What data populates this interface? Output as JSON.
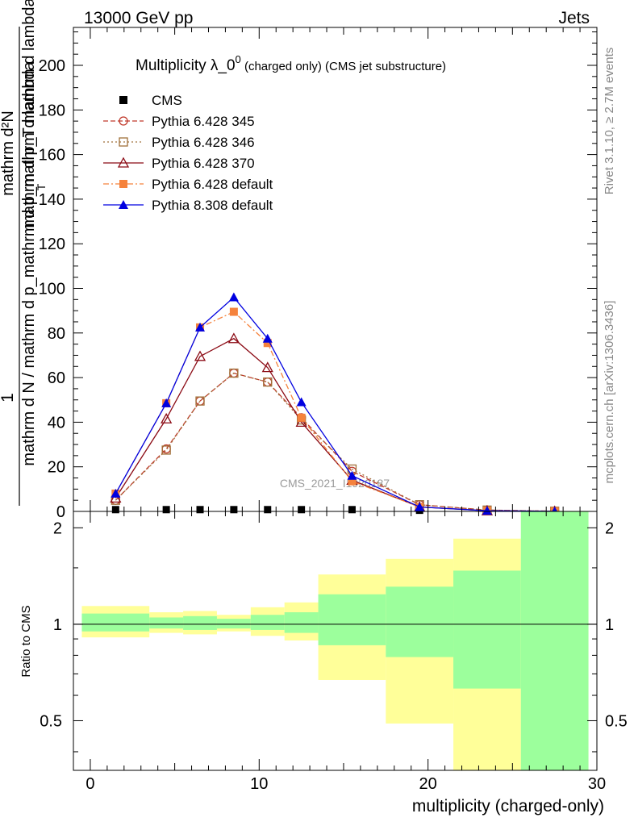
{
  "header": {
    "left": "13000 GeV pp",
    "right": "Jets"
  },
  "side_labels": {
    "rivet": "Rivet 3.1.10, ≥ 2.7M events",
    "mcplots": "mcplots.cern.ch [arXiv:1306.3436]"
  },
  "chart_data": {
    "type": "line",
    "title_main": "Multiplicity λ_0",
    "title_sup": "0",
    "title_small": " (charged only) (CMS jet substructure)",
    "watermark": "CMS_2021_I1920187",
    "xlabel": "multiplicity (charged-only)",
    "ylabel_top": {
      "numerator": "1",
      "denominator": "mathrm d N / mathrm d p_mathrm d p_mathrm d lambda",
      "overlay": "mathrm d²N",
      "overlay_fraction": "mathrm d p_T mathrm d lambda",
      "subscript": "T"
    },
    "ylabel_ratio": "Ratio to CMS",
    "xlim": [
      -1,
      30
    ],
    "ylim": [
      0,
      217
    ],
    "ylim_ratio": [
      0.35,
      2.25
    ],
    "x_ticks": [
      "0",
      "10",
      "20",
      "30"
    ],
    "y_ticks": [
      "0",
      "20",
      "40",
      "60",
      "80",
      "100",
      "120",
      "140",
      "160",
      "180",
      "200"
    ],
    "ratio_ticks": [
      "0.5",
      "1",
      "2"
    ],
    "x": [
      1.5,
      4.5,
      6.5,
      8.5,
      10.5,
      12.5,
      15.5,
      19.5,
      23.5,
      27.5
    ],
    "series": [
      {
        "name": "CMS",
        "color": "#000000",
        "marker": "square-filled",
        "values": [
          0.8,
          0.8,
          0.8,
          0.8,
          0.8,
          0.8,
          0.8,
          0.5,
          0.3,
          0.2
        ]
      },
      {
        "name": "Pythia 6.428 345",
        "color": "#c0392b",
        "marker": "circle-open",
        "dash": "6,3",
        "values": [
          5,
          28,
          49.5,
          62,
          58,
          42,
          18,
          3,
          0.6,
          0.1
        ]
      },
      {
        "name": "Pythia 6.428 346",
        "color": "#a0703a",
        "marker": "square-open",
        "dash": "2,3",
        "values": [
          5,
          27.5,
          49.5,
          62,
          58,
          41,
          19,
          3,
          0.6,
          0.1
        ]
      },
      {
        "name": "Pythia 6.428 370",
        "color": "#8b0a14",
        "marker": "triangle-open",
        "dash": "",
        "values": [
          6,
          41.5,
          69.5,
          77.5,
          64.5,
          40,
          14,
          2,
          0.3,
          0.05
        ]
      },
      {
        "name": "Pythia 6.428 default",
        "color": "#f5823c",
        "marker": "square-filled",
        "dash": "7,3,2,3",
        "values": [
          8,
          48.5,
          82.5,
          89.5,
          75.5,
          42,
          13.5,
          2,
          0.3,
          0.05
        ]
      },
      {
        "name": "Pythia 8.308 default",
        "color": "#0000e0",
        "marker": "triangle-filled",
        "dash": "",
        "values": [
          8,
          48.5,
          82.5,
          96,
          77.5,
          49,
          16,
          2,
          0.3,
          0.05
        ]
      }
    ],
    "ratio_bands": [
      {
        "x0": -0.5,
        "x1": 3.5,
        "inner": [
          0.95,
          1.08
        ],
        "outer": [
          0.91,
          1.14
        ]
      },
      {
        "x0": 3.5,
        "x1": 5.5,
        "inner": [
          0.97,
          1.05
        ],
        "outer": [
          0.94,
          1.09
        ]
      },
      {
        "x0": 5.5,
        "x1": 7.5,
        "inner": [
          0.96,
          1.06
        ],
        "outer": [
          0.93,
          1.1
        ]
      },
      {
        "x0": 7.5,
        "x1": 9.5,
        "inner": [
          0.97,
          1.04
        ],
        "outer": [
          0.95,
          1.07
        ]
      },
      {
        "x0": 9.5,
        "x1": 11.5,
        "inner": [
          0.96,
          1.07
        ],
        "outer": [
          0.92,
          1.13
        ]
      },
      {
        "x0": 11.5,
        "x1": 13.5,
        "inner": [
          0.94,
          1.09
        ],
        "outer": [
          0.89,
          1.17
        ]
      },
      {
        "x0": 13.5,
        "x1": 17.5,
        "inner": [
          0.86,
          1.24
        ],
        "outer": [
          0.67,
          1.43
        ]
      },
      {
        "x0": 17.5,
        "x1": 21.5,
        "inner": [
          0.79,
          1.31
        ],
        "outer": [
          0.49,
          1.6
        ]
      },
      {
        "x0": 21.5,
        "x1": 25.5,
        "inner": [
          0.63,
          1.47
        ],
        "outer": [
          0.35,
          1.85
        ]
      },
      {
        "x0": 25.5,
        "x1": 29.5,
        "inner": [
          0.35,
          2.25
        ],
        "outer": [
          0.35,
          2.25
        ]
      }
    ],
    "band_colors": {
      "inner": "#9cff9c",
      "outer": "#ffff99"
    }
  }
}
